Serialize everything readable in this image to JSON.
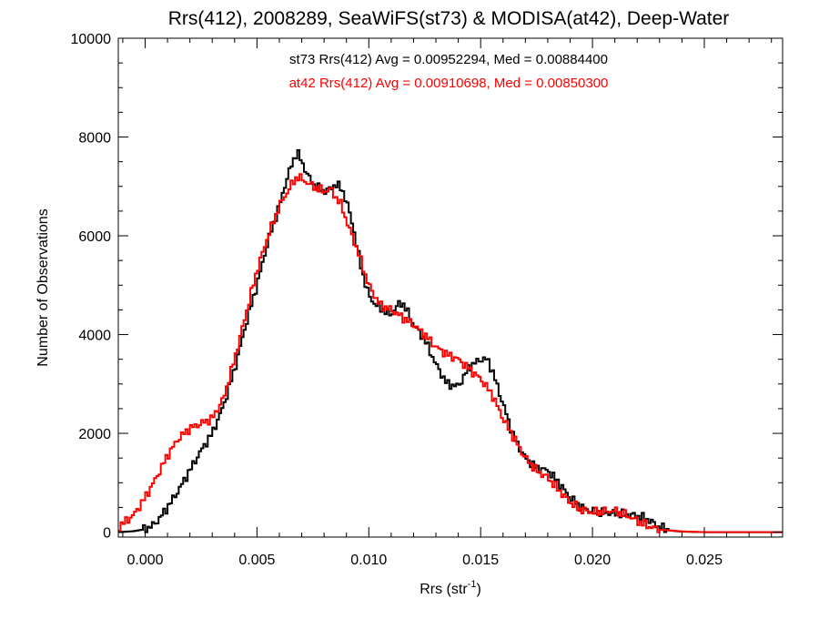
{
  "chart_data": {
    "type": "line",
    "step": true,
    "title": "Rrs(412), 2008289, SeaWiFS(st73) & MODISA(at42), Deep-Water",
    "xlabel_main": "Rrs (str",
    "xlabel_sup": "-1",
    "xlabel_close": ")",
    "ylabel": "Number of Observations",
    "xlim": [
      -0.0012,
      0.0285
    ],
    "ylim": [
      -100,
      10000
    ],
    "xticks": [
      0.0,
      0.005,
      0.01,
      0.015,
      0.02,
      0.025
    ],
    "xtick_labels": [
      "0.000",
      "0.005",
      "0.010",
      "0.015",
      "0.020",
      "0.025"
    ],
    "yticks": [
      0,
      2000,
      4000,
      6000,
      8000,
      10000
    ],
    "ytick_labels": [
      "0",
      "2000",
      "4000",
      "6000",
      "8000",
      "10000"
    ],
    "grid": false,
    "annotations": [
      {
        "text": "st73 Rrs(412) Avg = 0.00952294, Med = 0.00884400",
        "color": "#000000"
      },
      {
        "text": "at42 Rrs(412) Avg = 0.00910698, Med = 0.00850300",
        "color": "#ff0000"
      }
    ],
    "series": [
      {
        "color": "#000000",
        "points": [
          [
            -0.0012,
            0
          ],
          [
            -0.0005,
            20
          ],
          [
            0.0,
            60
          ],
          [
            0.0003,
            120
          ],
          [
            0.0006,
            250
          ],
          [
            0.001,
            500
          ],
          [
            0.0015,
            850
          ],
          [
            0.002,
            1250
          ],
          [
            0.0025,
            1650
          ],
          [
            0.003,
            2000
          ],
          [
            0.0035,
            2550
          ],
          [
            0.004,
            3300
          ],
          [
            0.0045,
            4200
          ],
          [
            0.005,
            5000
          ],
          [
            0.0055,
            5900
          ],
          [
            0.006,
            6600
          ],
          [
            0.0063,
            7100
          ],
          [
            0.0066,
            7500
          ],
          [
            0.0068,
            7700
          ],
          [
            0.007,
            7500
          ],
          [
            0.0073,
            7200
          ],
          [
            0.0075,
            7050
          ],
          [
            0.0078,
            6950
          ],
          [
            0.008,
            6900
          ],
          [
            0.0083,
            6950
          ],
          [
            0.0085,
            7050
          ],
          [
            0.0088,
            6950
          ],
          [
            0.009,
            6700
          ],
          [
            0.0093,
            6200
          ],
          [
            0.0095,
            5700
          ],
          [
            0.0098,
            5100
          ],
          [
            0.01,
            4800
          ],
          [
            0.0103,
            4600
          ],
          [
            0.0105,
            4550
          ],
          [
            0.0108,
            4450
          ],
          [
            0.011,
            4400
          ],
          [
            0.0113,
            4600
          ],
          [
            0.0115,
            4650
          ],
          [
            0.0118,
            4400
          ],
          [
            0.012,
            4200
          ],
          [
            0.0125,
            3900
          ],
          [
            0.013,
            3400
          ],
          [
            0.0135,
            3000
          ],
          [
            0.014,
            2950
          ],
          [
            0.0145,
            3350
          ],
          [
            0.015,
            3500
          ],
          [
            0.0153,
            3500
          ],
          [
            0.0155,
            3300
          ],
          [
            0.016,
            2600
          ],
          [
            0.0165,
            1900
          ],
          [
            0.017,
            1500
          ],
          [
            0.0175,
            1300
          ],
          [
            0.018,
            1250
          ],
          [
            0.0185,
            1000
          ],
          [
            0.019,
            700
          ],
          [
            0.0195,
            500
          ],
          [
            0.02,
            420
          ],
          [
            0.0205,
            400
          ],
          [
            0.021,
            380
          ],
          [
            0.0215,
            360
          ],
          [
            0.022,
            330
          ],
          [
            0.0225,
            250
          ],
          [
            0.023,
            100
          ],
          [
            0.0235,
            30
          ],
          [
            0.024,
            10
          ],
          [
            0.025,
            0
          ],
          [
            0.0285,
            0
          ]
        ]
      },
      {
        "color": "#ff0000",
        "points": [
          [
            -0.0012,
            100
          ],
          [
            -0.0005,
            350
          ],
          [
            0.0,
            700
          ],
          [
            0.0005,
            1100
          ],
          [
            0.001,
            1550
          ],
          [
            0.0015,
            1900
          ],
          [
            0.002,
            2100
          ],
          [
            0.0025,
            2200
          ],
          [
            0.003,
            2300
          ],
          [
            0.0035,
            2700
          ],
          [
            0.004,
            3500
          ],
          [
            0.0045,
            4400
          ],
          [
            0.005,
            5300
          ],
          [
            0.0055,
            6000
          ],
          [
            0.006,
            6600
          ],
          [
            0.0065,
            7000
          ],
          [
            0.0068,
            7200
          ],
          [
            0.007,
            7150
          ],
          [
            0.0075,
            7000
          ],
          [
            0.008,
            6900
          ],
          [
            0.0083,
            6950
          ],
          [
            0.0085,
            6800
          ],
          [
            0.0088,
            6600
          ],
          [
            0.009,
            6300
          ],
          [
            0.0095,
            5700
          ],
          [
            0.01,
            5000
          ],
          [
            0.0105,
            4600
          ],
          [
            0.011,
            4500
          ],
          [
            0.0115,
            4350
          ],
          [
            0.012,
            4200
          ],
          [
            0.0125,
            4000
          ],
          [
            0.013,
            3750
          ],
          [
            0.0135,
            3600
          ],
          [
            0.014,
            3500
          ],
          [
            0.0145,
            3300
          ],
          [
            0.015,
            3100
          ],
          [
            0.0155,
            2800
          ],
          [
            0.016,
            2300
          ],
          [
            0.0165,
            1900
          ],
          [
            0.017,
            1500
          ],
          [
            0.0175,
            1250
          ],
          [
            0.018,
            1100
          ],
          [
            0.0185,
            850
          ],
          [
            0.019,
            600
          ],
          [
            0.0195,
            450
          ],
          [
            0.02,
            400
          ],
          [
            0.0205,
            420
          ],
          [
            0.021,
            430
          ],
          [
            0.0215,
            350
          ],
          [
            0.022,
            230
          ],
          [
            0.0225,
            120
          ],
          [
            0.023,
            50
          ],
          [
            0.024,
            15
          ],
          [
            0.025,
            0
          ],
          [
            0.0285,
            0
          ]
        ]
      }
    ]
  }
}
